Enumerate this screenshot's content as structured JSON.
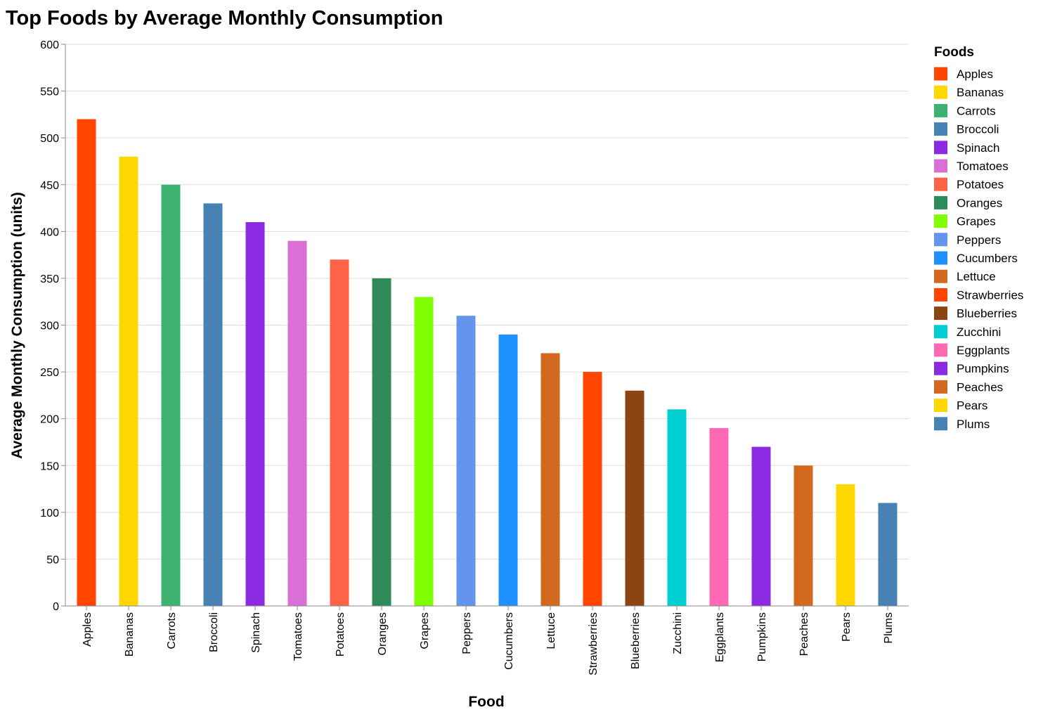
{
  "chart_data": {
    "type": "bar",
    "title": "Top Foods by Average Monthly Consumption",
    "xlabel": "Food",
    "ylabel": "Average Monthly Consumption (units)",
    "ylim": [
      0,
      600
    ],
    "yticks": [
      0,
      50,
      100,
      150,
      200,
      250,
      300,
      350,
      400,
      450,
      500,
      550,
      600
    ],
    "grid": true,
    "legend": {
      "title": "Foods",
      "placement": "right"
    },
    "categories": [
      "Apples",
      "Bananas",
      "Carrots",
      "Broccoli",
      "Spinach",
      "Tomatoes",
      "Potatoes",
      "Oranges",
      "Grapes",
      "Peppers",
      "Cucumbers",
      "Lettuce",
      "Strawberries",
      "Blueberries",
      "Zucchini",
      "Eggplants",
      "Pumpkins",
      "Peaches",
      "Pears",
      "Plums"
    ],
    "values": [
      520,
      480,
      450,
      430,
      410,
      390,
      370,
      350,
      330,
      310,
      290,
      270,
      250,
      230,
      210,
      190,
      170,
      150,
      130,
      110
    ],
    "colors": [
      "#FF4500",
      "#FFD700",
      "#3CB371",
      "#4682B4",
      "#8A2BE2",
      "#DA70D6",
      "#FF6347",
      "#2E8B57",
      "#7FFF00",
      "#6495ED",
      "#1E90FF",
      "#D2691E",
      "#FF4500",
      "#8B4513",
      "#00CED1",
      "#FF69B4",
      "#8A2BE2",
      "#D2691E",
      "#FFD700",
      "#4682B4"
    ]
  }
}
